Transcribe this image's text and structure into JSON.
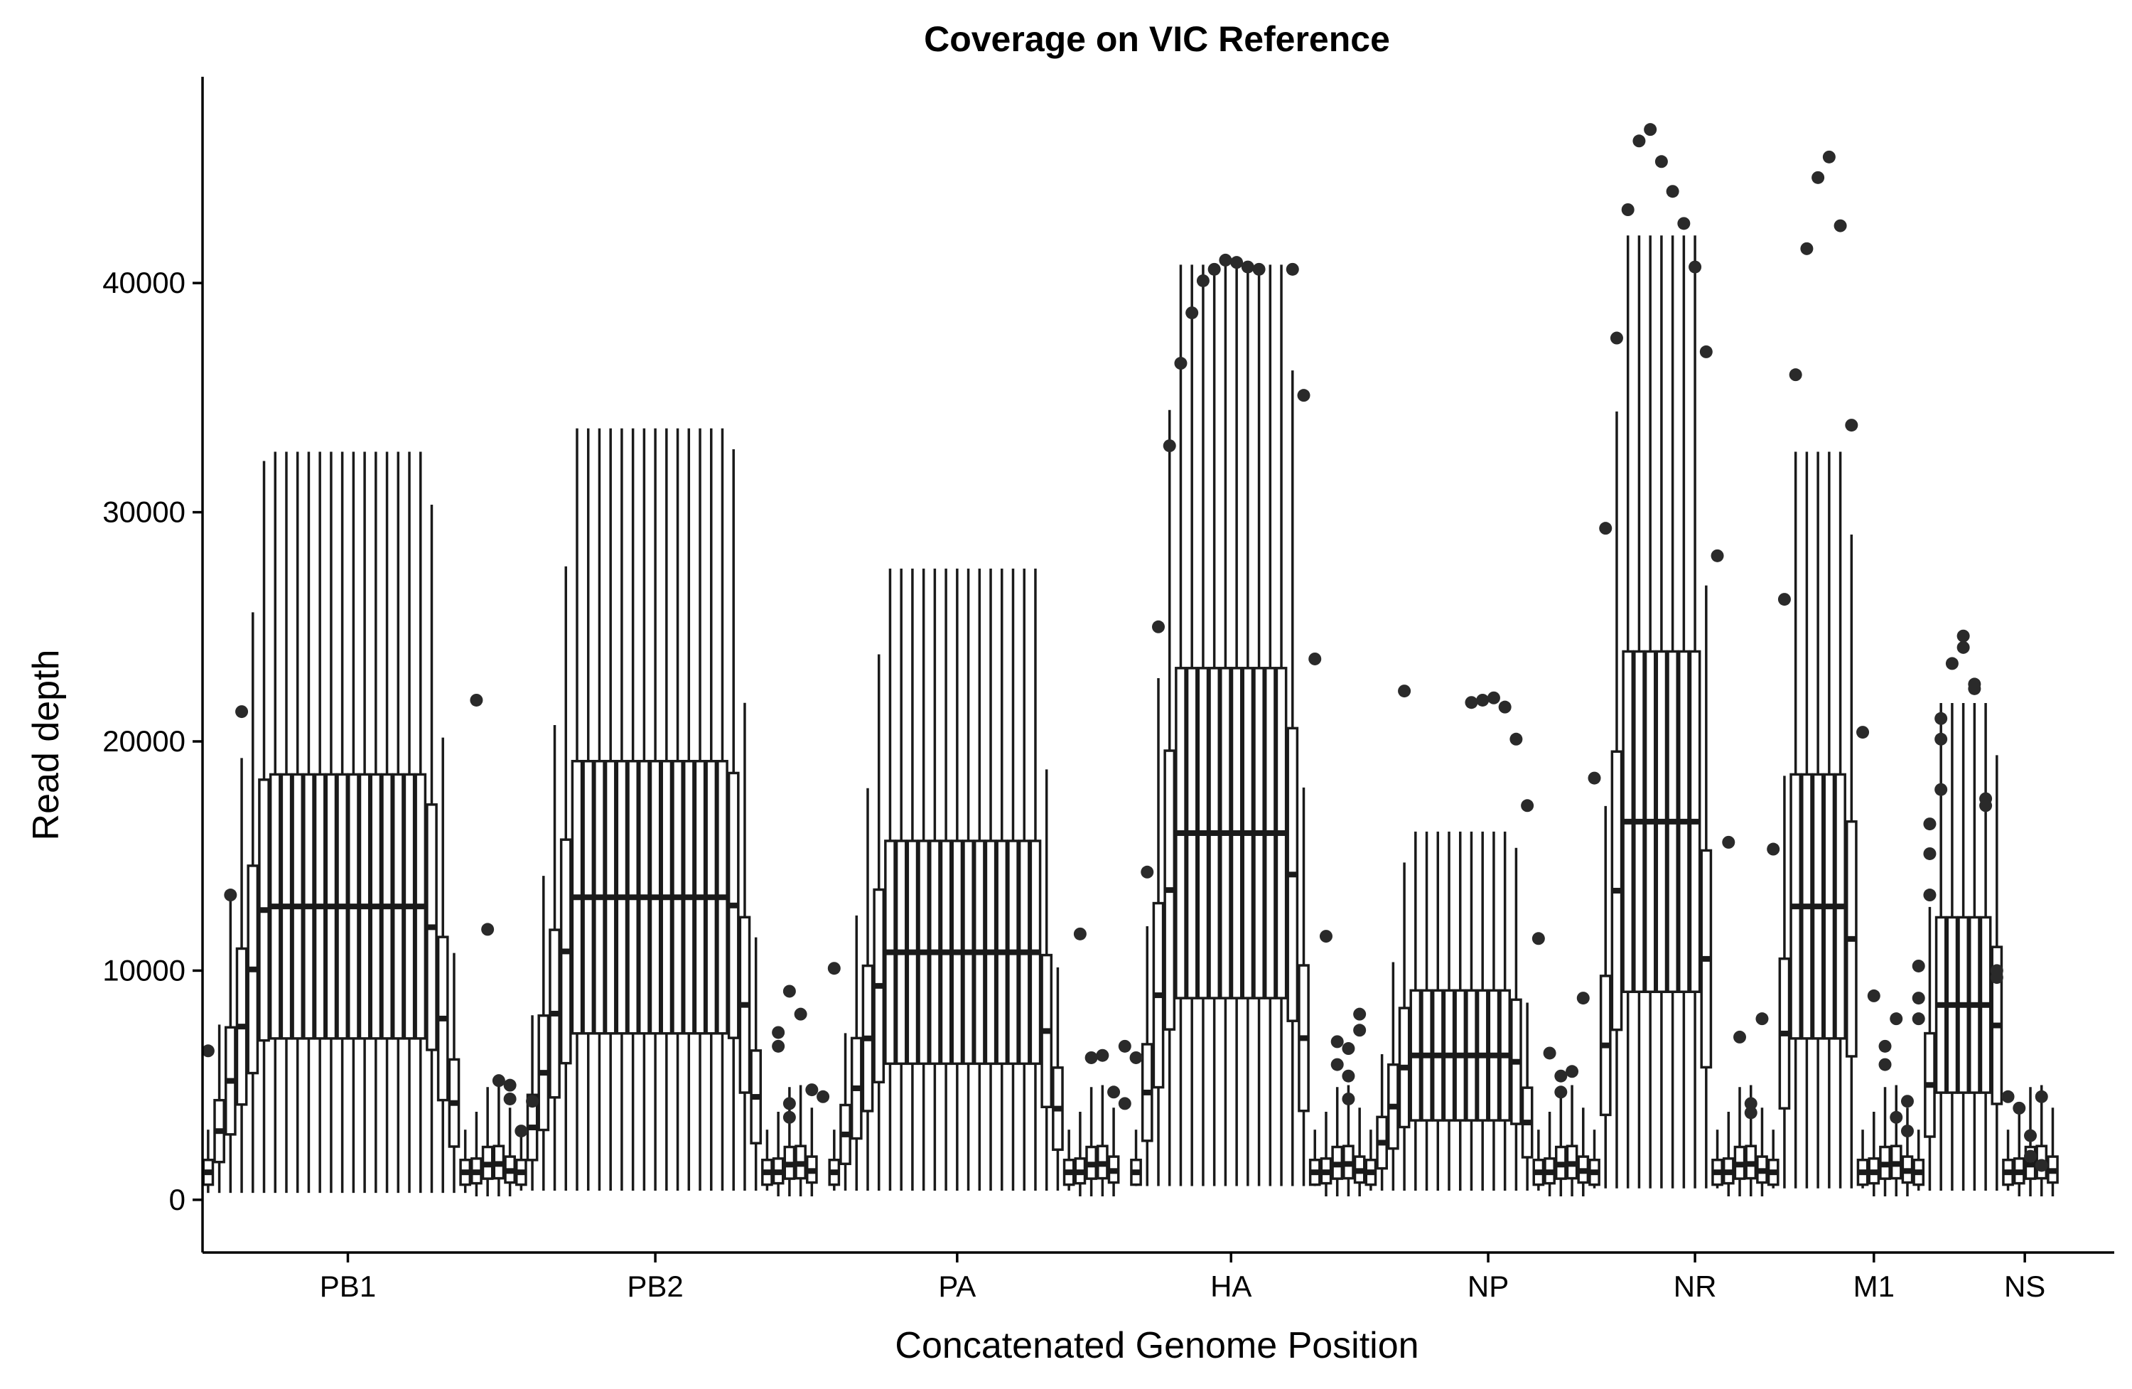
{
  "chart_data": {
    "type": "boxplot",
    "title": "Coverage on VIC Reference",
    "xlabel": "Concatenated Genome Position",
    "ylabel": "Read depth",
    "ylim": [
      -2300,
      49000
    ],
    "yticks": [
      0,
      10000,
      20000,
      30000,
      40000
    ],
    "xlim": [
      0.5,
      171.5
    ],
    "grid": false,
    "legend": "none",
    "segments": [
      {
        "name": "PB1",
        "start": 1,
        "count": 24,
        "base": 300,
        "peak": 12800,
        "label_pos": 13.5
      },
      {
        "name": "PB2",
        "start": 29,
        "count": 23,
        "base": 400,
        "peak": 13200,
        "label_pos": 41
      },
      {
        "name": "PA",
        "start": 57,
        "count": 22,
        "base": 400,
        "peak": 10800,
        "label_pos": 68
      },
      {
        "name": "HA",
        "start": 84,
        "count": 17,
        "base": 600,
        "peak": 16000,
        "label_pos": 92.5
      },
      {
        "name": "NP",
        "start": 105,
        "count": 16,
        "base": 400,
        "peak": 6300,
        "label_pos": 115.5
      },
      {
        "name": "NR",
        "start": 125,
        "count": 12,
        "base": 500,
        "peak": 16500,
        "label_pos": 134
      },
      {
        "name": "M1",
        "start": 141,
        "count": 9,
        "base": 500,
        "peak": 12800,
        "label_pos": 150
      },
      {
        "name": "NS",
        "start": 154,
        "count": 9,
        "base": 400,
        "peak": 8500,
        "label_pos": 163.5
      }
    ],
    "outliers": [
      [
        1,
        6500
      ],
      [
        3,
        13300
      ],
      [
        4,
        21300
      ],
      [
        25,
        21800
      ],
      [
        26,
        11800
      ],
      [
        27,
        5200
      ],
      [
        28,
        5000
      ],
      [
        28,
        4400
      ],
      [
        29,
        3000
      ],
      [
        30,
        4300
      ],
      [
        53,
        9100
      ],
      [
        54,
        8100
      ],
      [
        55,
        4800
      ],
      [
        56,
        4500
      ],
      [
        52,
        6700
      ],
      [
        52,
        7300
      ],
      [
        53,
        4200
      ],
      [
        53,
        3600
      ],
      [
        57,
        10100
      ],
      [
        79,
        11600
      ],
      [
        80,
        6200
      ],
      [
        81,
        6300
      ],
      [
        82,
        4700
      ],
      [
        83,
        4200
      ],
      [
        83,
        6700
      ],
      [
        84,
        6200
      ],
      [
        85,
        14300
      ],
      [
        86,
        25000
      ],
      [
        87,
        32900
      ],
      [
        88,
        36500
      ],
      [
        89,
        38700
      ],
      [
        90,
        40100
      ],
      [
        91,
        40600
      ],
      [
        92,
        41000
      ],
      [
        93,
        40900
      ],
      [
        94,
        40700
      ],
      [
        95,
        40600
      ],
      [
        98,
        40600
      ],
      [
        99,
        35100
      ],
      [
        100,
        23600
      ],
      [
        101,
        11500
      ],
      [
        102,
        6900
      ],
      [
        102,
        5900
      ],
      [
        103,
        6600
      ],
      [
        103,
        5400
      ],
      [
        103,
        4400
      ],
      [
        104,
        8100
      ],
      [
        104,
        7400
      ],
      [
        108,
        22200
      ],
      [
        114,
        21700
      ],
      [
        115,
        21800
      ],
      [
        116,
        21900
      ],
      [
        117,
        21500
      ],
      [
        118,
        20100
      ],
      [
        119,
        17200
      ],
      [
        120,
        11400
      ],
      [
        121,
        6400
      ],
      [
        122,
        5400
      ],
      [
        122,
        4700
      ],
      [
        123,
        5600
      ],
      [
        124,
        8800
      ],
      [
        125,
        18400
      ],
      [
        126,
        29300
      ],
      [
        127,
        37600
      ],
      [
        128,
        43200
      ],
      [
        129,
        46200
      ],
      [
        130,
        46700
      ],
      [
        131,
        45300
      ],
      [
        132,
        44000
      ],
      [
        133,
        42600
      ],
      [
        134,
        40700
      ],
      [
        135,
        37000
      ],
      [
        136,
        28100
      ],
      [
        137,
        15600
      ],
      [
        138,
        7100
      ],
      [
        139,
        4200
      ],
      [
        139,
        3800
      ],
      [
        140,
        7900
      ],
      [
        141,
        15300
      ],
      [
        142,
        26200
      ],
      [
        143,
        36000
      ],
      [
        144,
        41500
      ],
      [
        145,
        44600
      ],
      [
        146,
        45500
      ],
      [
        147,
        42500
      ],
      [
        148,
        33800
      ],
      [
        149,
        20400
      ],
      [
        150,
        8900
      ],
      [
        151,
        6700
      ],
      [
        151,
        5900
      ],
      [
        152,
        7900
      ],
      [
        152,
        3600
      ],
      [
        153,
        4300
      ],
      [
        153,
        3000
      ],
      [
        154,
        10200
      ],
      [
        154,
        8800
      ],
      [
        154,
        7900
      ],
      [
        155,
        16400
      ],
      [
        155,
        15100
      ],
      [
        155,
        13300
      ],
      [
        156,
        21000
      ],
      [
        156,
        20100
      ],
      [
        156,
        17900
      ],
      [
        157,
        23400
      ],
      [
        158,
        24600
      ],
      [
        158,
        24100
      ],
      [
        159,
        22500
      ],
      [
        159,
        22300
      ],
      [
        160,
        17500
      ],
      [
        160,
        17200
      ],
      [
        161,
        10000
      ],
      [
        161,
        9700
      ],
      [
        162,
        4500
      ],
      [
        163,
        4000
      ],
      [
        164,
        2800
      ],
      [
        164,
        1900
      ],
      [
        165,
        4500
      ],
      [
        165,
        1500
      ]
    ]
  }
}
